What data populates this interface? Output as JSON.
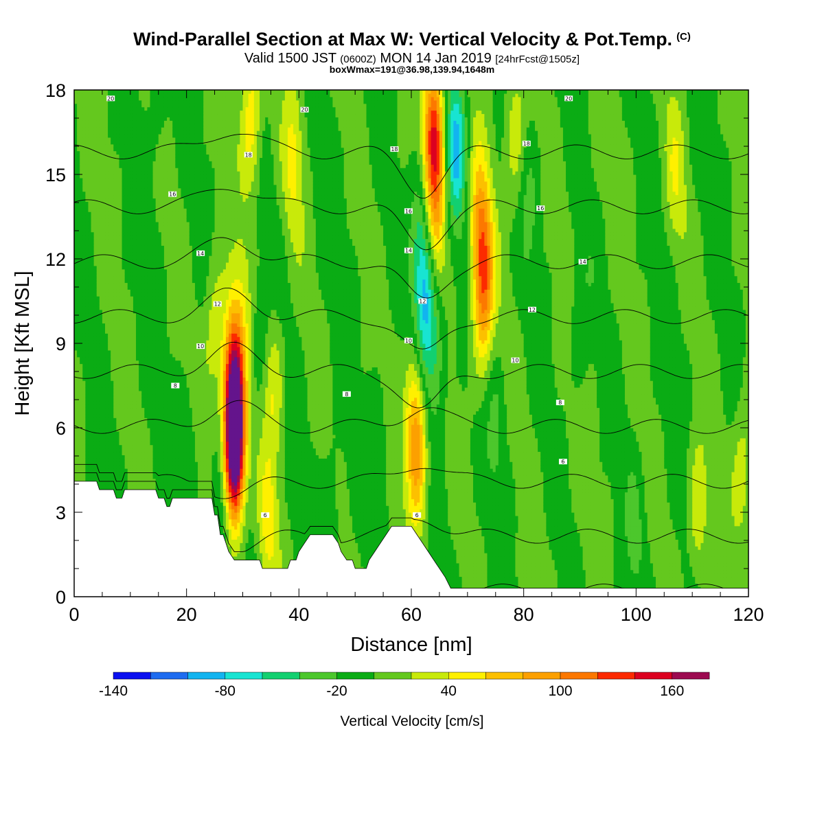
{
  "header": {
    "title": "Wind-Parallel Section at Max W: Vertical Velocity & Pot.Temp.",
    "title_unit": "(C)",
    "valid_prefix": "Valid 1500 JST",
    "valid_utc": "(0600Z)",
    "valid_date": "MON 14 Jan 2019",
    "forecast": "[24hrFcst@1505z]",
    "box_info": "boxWmax=191@36.98,139.94,1648m"
  },
  "chart_data": {
    "type": "heatmap",
    "xlabel": "Distance [nm]",
    "ylabel": "Height [Kft MSL]",
    "xlim": [
      0,
      120
    ],
    "ylim": [
      0,
      18
    ],
    "xticks": [
      "0",
      "20",
      "40",
      "60",
      "80",
      "100",
      "120"
    ],
    "yticks": [
      "0",
      "3",
      "6",
      "9",
      "12",
      "15",
      "18"
    ],
    "colorbar": {
      "title": "Vertical Velocity [cm/s]",
      "levels": [
        -140,
        -120,
        -100,
        -80,
        -60,
        -40,
        -20,
        0,
        20,
        40,
        60,
        80,
        100,
        120,
        140,
        160,
        180
      ],
      "labels": [
        "-140",
        "-80",
        "-20",
        "40",
        "100",
        "160"
      ],
      "colors": [
        "#0a10f0",
        "#1e6cf0",
        "#12b4f0",
        "#18e4d2",
        "#12d070",
        "#4cc72c",
        "#0aac14",
        "#64c81e",
        "#c8ea0a",
        "#fff000",
        "#fcc000",
        "#fca000",
        "#fc7800",
        "#fc2a00",
        "#dc0020",
        "#9c0a50",
        "#64148c"
      ]
    },
    "background_w": 0,
    "w_field_blobs": [
      {
        "x": 28.5,
        "z": 5.0,
        "w": 190
      },
      {
        "x": 28.5,
        "z": 6.8,
        "w": 130
      },
      {
        "x": 28.3,
        "z": 8.3,
        "w": 60
      },
      {
        "x": 30,
        "z": 10.5,
        "w": 20
      },
      {
        "x": 35.5,
        "z": 7.5,
        "w": 40
      },
      {
        "x": 34.5,
        "z": 2.5,
        "w": 40
      },
      {
        "x": 31.5,
        "z": 17.0,
        "w": 60
      },
      {
        "x": 39,
        "z": 15.5,
        "w": 40
      },
      {
        "x": 25,
        "z": 9.5,
        "w": 40
      },
      {
        "x": 61,
        "z": 5.0,
        "w": 80
      },
      {
        "x": 60.5,
        "z": 7.0,
        "w": 40
      },
      {
        "x": 64,
        "z": 16.5,
        "w": 130
      },
      {
        "x": 64.5,
        "z": 13.5,
        "w": 60
      },
      {
        "x": 73,
        "z": 11.5,
        "w": 80
      },
      {
        "x": 72,
        "z": 13.5,
        "w": 60
      },
      {
        "x": 72.5,
        "z": 10.0,
        "w": 40
      },
      {
        "x": 78.5,
        "z": 16.5,
        "w": 40
      },
      {
        "x": 111,
        "z": 3.0,
        "w": 40
      },
      {
        "x": 119,
        "z": 4.5,
        "w": 40
      },
      {
        "x": 107,
        "z": 15.0,
        "w": 30
      },
      {
        "x": 68,
        "z": 16.0,
        "w": -80
      },
      {
        "x": 62.5,
        "z": 10.5,
        "w": -80
      },
      {
        "x": 61.5,
        "z": 13.0,
        "w": -40
      },
      {
        "x": 64.5,
        "z": 8.5,
        "w": -40
      },
      {
        "x": 33,
        "z": 9.0,
        "w": -20
      },
      {
        "x": 26.5,
        "z": 3.5,
        "w": -40
      },
      {
        "x": 46,
        "z": 3.5,
        "w": -20
      },
      {
        "x": 54,
        "z": 5.0,
        "w": -20
      },
      {
        "x": 75,
        "z": 6.0,
        "w": -20
      },
      {
        "x": 81,
        "z": 14.0,
        "w": -20
      },
      {
        "x": 15,
        "z": 17.5,
        "w": -20
      },
      {
        "x": 20,
        "z": 5.0,
        "w": -20
      },
      {
        "x": 100,
        "z": 2.5,
        "w": -20
      },
      {
        "x": 90,
        "z": 10.0,
        "w": -20
      }
    ],
    "terrain_top": [
      [
        0,
        4.1
      ],
      [
        4,
        4.1
      ],
      [
        4.5,
        3.8
      ],
      [
        7,
        3.8
      ],
      [
        7.5,
        3.5
      ],
      [
        8.5,
        3.5
      ],
      [
        9,
        3.8
      ],
      [
        14.5,
        3.8
      ],
      [
        15,
        3.5
      ],
      [
        16,
        3.5
      ],
      [
        16.5,
        3.2
      ],
      [
        17,
        3.2
      ],
      [
        17.5,
        3.5
      ],
      [
        24.5,
        3.5
      ],
      [
        25,
        2.9
      ],
      [
        25.5,
        2.9
      ],
      [
        26,
        2.2
      ],
      [
        26.5,
        2.2
      ],
      [
        27,
        1.9
      ],
      [
        27.5,
        1.6
      ],
      [
        28.5,
        1.3
      ],
      [
        33,
        1.3
      ],
      [
        33.5,
        1.0
      ],
      [
        38,
        1.0
      ],
      [
        38.5,
        1.3
      ],
      [
        39.5,
        1.3
      ],
      [
        40,
        1.6
      ],
      [
        41,
        1.9
      ],
      [
        42,
        2.2
      ],
      [
        46,
        2.2
      ],
      [
        47,
        1.9
      ],
      [
        47.5,
        1.6
      ],
      [
        48.5,
        1.3
      ],
      [
        49.5,
        1.3
      ],
      [
        50,
        1.0
      ],
      [
        52,
        1.0
      ],
      [
        52.5,
        1.3
      ],
      [
        53.5,
        1.6
      ],
      [
        54.5,
        1.9
      ],
      [
        55.5,
        2.2
      ],
      [
        56.5,
        2.5
      ],
      [
        60,
        2.5
      ],
      [
        61,
        2.2
      ],
      [
        62,
        1.9
      ],
      [
        63,
        1.6
      ],
      [
        64,
        1.3
      ],
      [
        65,
        1.0
      ],
      [
        66,
        0.7
      ],
      [
        67,
        0.3
      ],
      [
        120,
        0.3
      ]
    ],
    "theta_levels": [
      4,
      6,
      8,
      10,
      12,
      14,
      16,
      18,
      20
    ],
    "theta_labels": [
      {
        "x": 34,
        "z": 2.9,
        "text": "6"
      },
      {
        "x": 61,
        "z": 2.9,
        "text": "6"
      },
      {
        "x": 87,
        "z": 4.8,
        "text": "6"
      },
      {
        "x": 18,
        "z": 7.5,
        "text": "8"
      },
      {
        "x": 48.5,
        "z": 7.2,
        "text": "8"
      },
      {
        "x": 86.5,
        "z": 6.9,
        "text": "8"
      },
      {
        "x": 22.5,
        "z": 8.9,
        "text": "10"
      },
      {
        "x": 59.5,
        "z": 9.1,
        "text": "10"
      },
      {
        "x": 78.5,
        "z": 8.4,
        "text": "10"
      },
      {
        "x": 25.5,
        "z": 10.4,
        "text": "12"
      },
      {
        "x": 62,
        "z": 10.5,
        "text": "12"
      },
      {
        "x": 81.5,
        "z": 10.2,
        "text": "12"
      },
      {
        "x": 22.5,
        "z": 12.2,
        "text": "14"
      },
      {
        "x": 59.5,
        "z": 12.3,
        "text": "14"
      },
      {
        "x": 90.5,
        "z": 11.9,
        "text": "14"
      },
      {
        "x": 17.5,
        "z": 14.3,
        "text": "16"
      },
      {
        "x": 59.5,
        "z": 13.7,
        "text": "16"
      },
      {
        "x": 83,
        "z": 13.8,
        "text": "16"
      },
      {
        "x": 31,
        "z": 15.7,
        "text": "18"
      },
      {
        "x": 57,
        "z": 15.9,
        "text": "18"
      },
      {
        "x": 80.5,
        "z": 16.1,
        "text": "18"
      },
      {
        "x": 6.5,
        "z": 17.7,
        "text": "20"
      },
      {
        "x": 41,
        "z": 17.3,
        "text": "20"
      },
      {
        "x": 88,
        "z": 17.7,
        "text": "20"
      }
    ]
  }
}
